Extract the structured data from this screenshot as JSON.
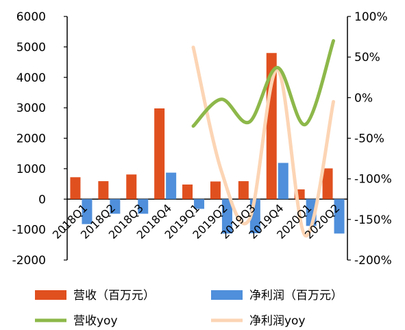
{
  "chart_data": {
    "type": "bar",
    "categories": [
      "2018Q1",
      "2018Q2",
      "2018Q3",
      "2018Q4",
      "2019Q1",
      "2019Q2",
      "2019Q3",
      "2019Q4",
      "2020Q1",
      "2020Q2"
    ],
    "y_left": {
      "ylim": [
        -2000,
        6000
      ],
      "ticks": [
        6000,
        5000,
        4000,
        3000,
        2000,
        1000,
        0,
        -1000,
        -2000
      ]
    },
    "y_right": {
      "ylim": [
        -200,
        100
      ],
      "ticks": [
        "100%",
        "50%",
        "0%",
        "-50%",
        "-100%",
        "-150%",
        "-200%"
      ],
      "tick_values": [
        100,
        50,
        0,
        -50,
        -100,
        -150,
        -200
      ]
    },
    "grid": false,
    "legend_position": "bottom",
    "series": [
      {
        "name": "营收（百万元）",
        "type": "bar",
        "axis": "left",
        "color": "#e0501f",
        "values": [
          720,
          590,
          810,
          2980,
          480,
          580,
          590,
          4800,
          320,
          1010
        ]
      },
      {
        "name": "净利润（百万元）",
        "type": "bar",
        "axis": "left",
        "color": "#4f8fdb",
        "values": [
          -820,
          -480,
          -480,
          870,
          -320,
          -1130,
          -1120,
          1190,
          -880,
          -1130
        ]
      },
      {
        "name": "营收yoy",
        "type": "line",
        "axis": "right",
        "color": "#8db84a",
        "values": [
          null,
          null,
          null,
          null,
          -35,
          -2,
          -30,
          37,
          -33,
          70
        ]
      },
      {
        "name": "净利润yoy",
        "type": "line",
        "axis": "right",
        "color": "#fcd5b5",
        "values": [
          null,
          null,
          null,
          null,
          62,
          -90,
          -150,
          35,
          -170,
          -5
        ]
      }
    ]
  }
}
